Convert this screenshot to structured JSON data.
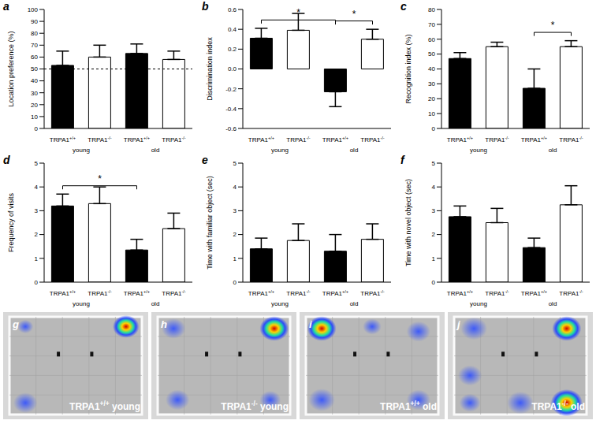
{
  "chart_data": [
    {
      "type": "bar",
      "panel": "a",
      "categories": [
        "TRPA1+/+",
        "TRPA1-/-",
        "TRPA1+/+",
        "TRPA1-/-"
      ],
      "groups": [
        {
          "label": "young",
          "categories": [
            0,
            1
          ]
        },
        {
          "label": "old",
          "categories": [
            2,
            3
          ]
        }
      ],
      "values": [
        53,
        60,
        63,
        58
      ],
      "errors": [
        12,
        10,
        8,
        7
      ],
      "colors": [
        "#000000",
        "#ffffff",
        "#000000",
        "#ffffff"
      ],
      "ylabel": "Location preference (%)",
      "ylim": [
        0,
        100
      ],
      "yticks": [
        0,
        10,
        20,
        30,
        40,
        50,
        60,
        70,
        80,
        90,
        100
      ],
      "reference_line": 50,
      "significance": []
    },
    {
      "type": "bar",
      "panel": "b",
      "categories": [
        "TRPA1+/+",
        "TRPA1-/-",
        "TRPA1+/+",
        "TRPA1-/-"
      ],
      "groups": [
        {
          "label": "young",
          "categories": [
            0,
            1
          ]
        },
        {
          "label": "old",
          "categories": [
            2,
            3
          ]
        }
      ],
      "values": [
        0.31,
        0.39,
        -0.23,
        0.3
      ],
      "errors": [
        0.1,
        0.17,
        0.15,
        0.1
      ],
      "colors": [
        "#000000",
        "#ffffff",
        "#000000",
        "#ffffff"
      ],
      "ylabel": "Discrimination index",
      "ylim": [
        -0.6,
        0.6
      ],
      "yticks": [
        -0.6,
        -0.4,
        -0.2,
        {
          "value": 0,
          "label": "0.0"
        },
        0.2,
        0.4,
        0.6
      ],
      "significance": [
        {
          "between": [
            0,
            2
          ],
          "label": "*"
        },
        {
          "between": [
            2,
            3
          ],
          "label": "*"
        }
      ]
    },
    {
      "type": "bar",
      "panel": "c",
      "categories": [
        "TRPA1+/+",
        "TRPA1-/-",
        "TRPA1+/+",
        "TRPA1-/-"
      ],
      "groups": [
        {
          "label": "young",
          "categories": [
            0,
            1
          ]
        },
        {
          "label": "old",
          "categories": [
            2,
            3
          ]
        }
      ],
      "values": [
        47,
        55,
        27,
        55
      ],
      "errors": [
        4,
        3,
        13,
        4
      ],
      "colors": [
        "#000000",
        "#ffffff",
        "#000000",
        "#ffffff"
      ],
      "ylabel": "Recognition index (%)",
      "ylim": [
        0,
        80
      ],
      "yticks": [
        0,
        10,
        20,
        30,
        40,
        50,
        60,
        70,
        80
      ],
      "significance": [
        {
          "between": [
            2,
            3
          ],
          "label": "*"
        }
      ]
    },
    {
      "type": "bar",
      "panel": "d",
      "categories": [
        "TRPA1+/+",
        "TRPA1-/-",
        "TRPA1+/+",
        "TRPA1-/-"
      ],
      "groups": [
        {
          "label": "young",
          "categories": [
            0,
            1
          ]
        },
        {
          "label": "old",
          "categories": [
            2,
            3
          ]
        }
      ],
      "values": [
        3.2,
        3.3,
        1.35,
        2.25
      ],
      "errors": [
        0.5,
        0.7,
        0.45,
        0.65
      ],
      "colors": [
        "#000000",
        "#ffffff",
        "#000000",
        "#ffffff"
      ],
      "ylabel": "Frequency of visits",
      "ylim": [
        0,
        5
      ],
      "yticks": [
        0,
        1,
        2,
        3,
        4,
        5
      ],
      "significance": [
        {
          "between": [
            0,
            2
          ],
          "label": "*"
        }
      ]
    },
    {
      "type": "bar",
      "panel": "e",
      "categories": [
        "TRPA1+/+",
        "TRPA1-/-",
        "TRPA1+/+",
        "TRPA1-/-"
      ],
      "groups": [
        {
          "label": "young",
          "categories": [
            0,
            1
          ]
        },
        {
          "label": "old",
          "categories": [
            2,
            3
          ]
        }
      ],
      "values": [
        1.4,
        1.75,
        1.3,
        1.8
      ],
      "errors": [
        0.45,
        0.7,
        0.7,
        0.65
      ],
      "colors": [
        "#000000",
        "#ffffff",
        "#000000",
        "#ffffff"
      ],
      "ylabel": "Time with familiar object (sec)",
      "ylim": [
        0,
        5
      ],
      "yticks": [
        0,
        1,
        2,
        3,
        4,
        5
      ],
      "significance": []
    },
    {
      "type": "bar",
      "panel": "f",
      "categories": [
        "TRPA1+/+",
        "TRPA1-/-",
        "TRPA1+/+",
        "TRPA1-/-"
      ],
      "groups": [
        {
          "label": "young",
          "categories": [
            0,
            1
          ]
        },
        {
          "label": "old",
          "categories": [
            2,
            3
          ]
        }
      ],
      "values": [
        2.75,
        2.5,
        1.45,
        3.25
      ],
      "errors": [
        0.45,
        0.6,
        0.4,
        0.8
      ],
      "colors": [
        "#000000",
        "#ffffff",
        "#000000",
        "#ffffff"
      ],
      "ylabel": "Time with novel object (sec)",
      "ylim": [
        0,
        5
      ],
      "yticks": [
        0,
        1,
        2,
        3,
        4,
        5
      ],
      "significance": []
    }
  ],
  "images": [
    {
      "panel": "g",
      "label": "TRPA1+/+ young"
    },
    {
      "panel": "h",
      "label": "TRPA1-/- young"
    },
    {
      "panel": "i",
      "label": "TRPA1+/+ old"
    },
    {
      "panel": "j",
      "label": "TRPA1-/- old"
    }
  ]
}
